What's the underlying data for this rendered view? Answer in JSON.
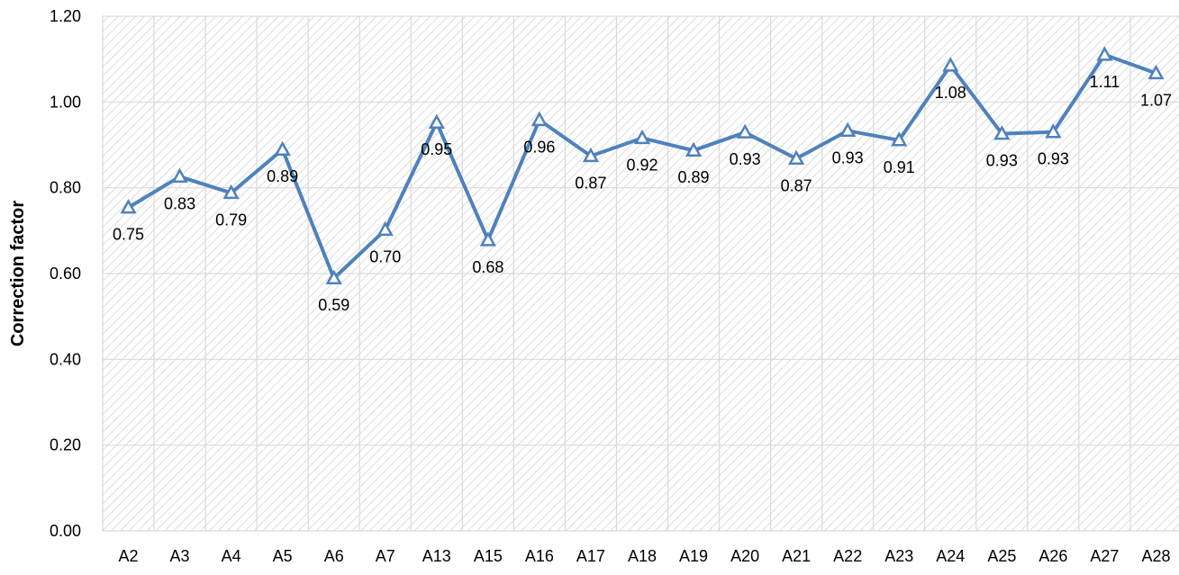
{
  "chart_data": {
    "type": "line",
    "ylabel": "Correction factor",
    "xlabel": "",
    "ylim": [
      0,
      1.2
    ],
    "yticks": [
      0.0,
      0.2,
      0.4,
      0.6,
      0.8,
      1.0,
      1.2
    ],
    "ytick_labels": [
      "0.00",
      "0.20",
      "0.40",
      "0.60",
      "0.80",
      "1.00",
      "1.20"
    ],
    "categories": [
      "A2",
      "A3",
      "A4",
      "A5",
      "A6",
      "A7",
      "A13",
      "A15",
      "A16",
      "A17",
      "A18",
      "A19",
      "A20",
      "A21",
      "A22",
      "A23",
      "A24",
      "A25",
      "A26",
      "A27",
      "A28"
    ],
    "series": [
      {
        "values": [
          0.754,
          0.826,
          0.788,
          0.889,
          0.589,
          0.702,
          0.952,
          0.678,
          0.958,
          0.874,
          0.916,
          0.887,
          0.929,
          0.868,
          0.933,
          0.911,
          1.085,
          0.926,
          0.93,
          1.11,
          1.067
        ],
        "labels": [
          "0.75",
          "0.83",
          "0.79",
          "0.89",
          "0.59",
          "0.70",
          "0.95",
          "0.68",
          "0.96",
          "0.87",
          "0.92",
          "0.89",
          "0.93",
          "0.87",
          "0.93",
          "0.91",
          "1.08",
          "0.93",
          "0.93",
          "1.11",
          "1.07"
        ],
        "label_positions": [
          "below",
          "below",
          "below",
          "below",
          "below",
          "below",
          "below",
          "below",
          "below",
          "below",
          "below",
          "below",
          "below",
          "below",
          "below",
          "below",
          "below",
          "below",
          "below",
          "below",
          "below"
        ],
        "color": "#4f81bd",
        "marker": "triangle-open"
      }
    ],
    "grid": true,
    "background_pattern": "diagonal-hatch",
    "legend": "none"
  }
}
